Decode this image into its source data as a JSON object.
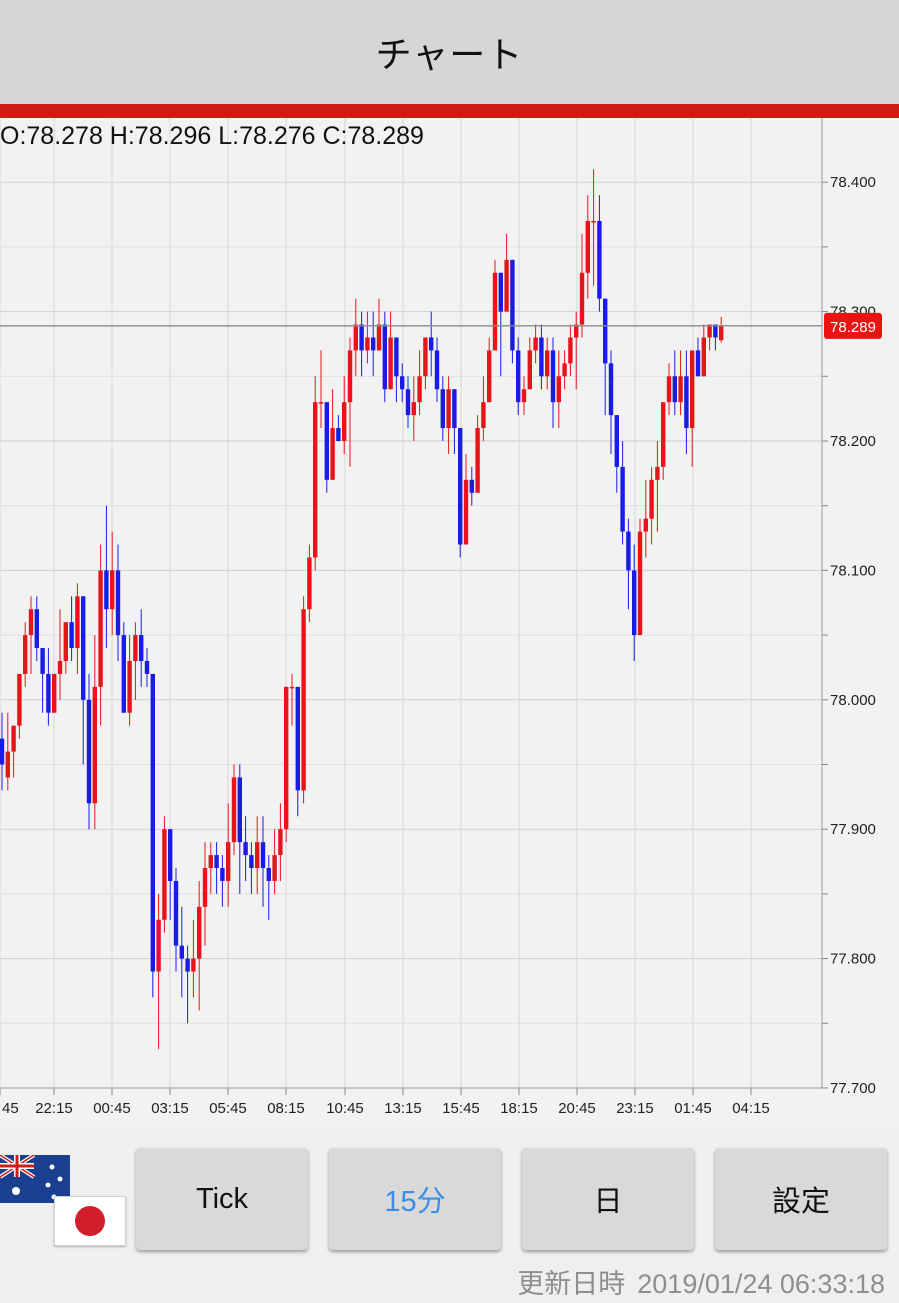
{
  "header": {
    "title": "チャート"
  },
  "ohlc": {
    "text": "O:78.278 H:78.296 L:78.276 C:78.289"
  },
  "chart_data": {
    "type": "candlestick",
    "ylim": [
      77.7,
      78.43
    ],
    "y_ticks": [
      77.7,
      77.8,
      77.9,
      78.0,
      78.1,
      78.2,
      78.3,
      78.4
    ],
    "y_tick_labels": [
      "77.700",
      "77.800",
      "77.900",
      "78.000",
      "78.100",
      "78.200",
      "78.300",
      "78.400"
    ],
    "x_tick_labels": [
      "45",
      "22:15",
      "00:45",
      "03:15",
      "05:45",
      "08:15",
      "10:45",
      "13:15",
      "15:45",
      "18:15",
      "20:45",
      "23:15",
      "01:45",
      "04:15"
    ],
    "current_price": 78.289,
    "current_price_label": "78.289",
    "grid": true,
    "up_color": "#e8141c",
    "down_color": "#1b1be6",
    "candles": [
      [
        77.97,
        77.95,
        77.99,
        77.93
      ],
      [
        77.94,
        77.96,
        77.99,
        77.93
      ],
      [
        77.96,
        77.98,
        77.98,
        77.94
      ],
      [
        77.98,
        78.02,
        78.02,
        77.97
      ],
      [
        78.02,
        78.05,
        78.06,
        78.01
      ],
      [
        78.05,
        78.07,
        78.08,
        78.02
      ],
      [
        78.07,
        78.04,
        78.08,
        78.03
      ],
      [
        78.04,
        78.02,
        78.03,
        77.99
      ],
      [
        78.02,
        77.99,
        78.04,
        77.98
      ],
      [
        77.99,
        78.02,
        78.02,
        77.99
      ],
      [
        78.02,
        78.03,
        78.07,
        78.0
      ],
      [
        78.03,
        78.06,
        78.06,
        78.02
      ],
      [
        78.06,
        78.04,
        78.08,
        78.03
      ],
      [
        78.04,
        78.08,
        78.09,
        78.02
      ],
      [
        78.08,
        78.0,
        78.08,
        77.95
      ],
      [
        78.0,
        77.92,
        78.02,
        77.9
      ],
      [
        77.92,
        78.01,
        78.05,
        77.9
      ],
      [
        78.01,
        78.1,
        78.12,
        77.98
      ],
      [
        78.1,
        78.07,
        78.15,
        78.04
      ],
      [
        78.07,
        78.1,
        78.13,
        78.05
      ],
      [
        78.1,
        78.05,
        78.12,
        78.03
      ],
      [
        78.05,
        77.99,
        78.06,
        77.99
      ],
      [
        77.99,
        78.03,
        78.05,
        77.98
      ],
      [
        78.03,
        78.05,
        78.06,
        78.0
      ],
      [
        78.05,
        78.03,
        78.07,
        78.01
      ],
      [
        78.03,
        78.02,
        78.04,
        78.01
      ],
      [
        78.02,
        77.79,
        78.02,
        77.77
      ],
      [
        77.79,
        77.83,
        77.85,
        77.73
      ],
      [
        77.83,
        77.9,
        77.91,
        77.82
      ],
      [
        77.9,
        77.86,
        77.9,
        77.83
      ],
      [
        77.86,
        77.81,
        77.87,
        77.79
      ],
      [
        77.81,
        77.8,
        77.84,
        77.77
      ],
      [
        77.8,
        77.79,
        77.81,
        77.75
      ],
      [
        77.79,
        77.8,
        77.83,
        77.77
      ],
      [
        77.8,
        77.84,
        77.86,
        77.76
      ],
      [
        77.84,
        77.87,
        77.89,
        77.81
      ],
      [
        77.87,
        77.88,
        77.89,
        77.85
      ],
      [
        77.88,
        77.87,
        77.89,
        77.85
      ],
      [
        77.87,
        77.86,
        77.88,
        77.84
      ],
      [
        77.86,
        77.89,
        77.92,
        77.84
      ],
      [
        77.89,
        77.94,
        77.95,
        77.88
      ],
      [
        77.94,
        77.89,
        77.95,
        77.85
      ],
      [
        77.89,
        77.88,
        77.91,
        77.86
      ],
      [
        77.88,
        77.87,
        77.89,
        77.85
      ],
      [
        77.87,
        77.89,
        77.91,
        77.85
      ],
      [
        77.89,
        77.87,
        77.91,
        77.84
      ],
      [
        77.87,
        77.86,
        77.88,
        77.83
      ],
      [
        77.86,
        77.88,
        77.9,
        77.85
      ],
      [
        77.88,
        77.9,
        77.92,
        77.86
      ],
      [
        77.9,
        78.01,
        78.01,
        77.89
      ],
      [
        78.01,
        78.01,
        78.02,
        77.98
      ],
      [
        78.01,
        77.93,
        78.01,
        77.91
      ],
      [
        77.93,
        78.07,
        78.08,
        77.92
      ],
      [
        78.07,
        78.11,
        78.12,
        78.06
      ],
      [
        78.11,
        78.23,
        78.25,
        78.1
      ],
      [
        78.23,
        78.23,
        78.27,
        78.21
      ],
      [
        78.23,
        78.17,
        78.23,
        78.16
      ],
      [
        78.17,
        78.21,
        78.24,
        78.18
      ],
      [
        78.21,
        78.2,
        78.22,
        78.2
      ],
      [
        78.2,
        78.23,
        78.25,
        78.19
      ],
      [
        78.23,
        78.27,
        78.28,
        78.18
      ],
      [
        78.27,
        78.29,
        78.31,
        78.25
      ],
      [
        78.29,
        78.27,
        78.3,
        78.25
      ],
      [
        78.27,
        78.28,
        78.3,
        78.26
      ],
      [
        78.28,
        78.27,
        78.3,
        78.25
      ],
      [
        78.27,
        78.29,
        78.31,
        78.27
      ],
      [
        78.29,
        78.24,
        78.3,
        78.23
      ],
      [
        78.24,
        78.28,
        78.3,
        78.24
      ],
      [
        78.28,
        78.25,
        78.28,
        78.23
      ],
      [
        78.25,
        78.24,
        78.26,
        78.23
      ],
      [
        78.24,
        78.22,
        78.25,
        78.21
      ],
      [
        78.22,
        78.23,
        78.25,
        78.2
      ],
      [
        78.23,
        78.25,
        78.27,
        78.22
      ],
      [
        78.25,
        78.28,
        78.28,
        78.24
      ],
      [
        78.28,
        78.27,
        78.3,
        78.25
      ],
      [
        78.27,
        78.24,
        78.28,
        78.23
      ],
      [
        78.24,
        78.21,
        78.25,
        78.2
      ],
      [
        78.21,
        78.24,
        78.25,
        78.19
      ],
      [
        78.24,
        78.21,
        78.24,
        78.19
      ],
      [
        78.21,
        78.12,
        78.21,
        78.11
      ],
      [
        78.12,
        78.17,
        78.19,
        78.12
      ],
      [
        78.17,
        78.16,
        78.18,
        78.15
      ],
      [
        78.16,
        78.21,
        78.22,
        78.16
      ],
      [
        78.21,
        78.23,
        78.25,
        78.2
      ],
      [
        78.23,
        78.27,
        78.28,
        78.23
      ],
      [
        78.27,
        78.33,
        78.34,
        78.27
      ],
      [
        78.33,
        78.3,
        78.33,
        78.25
      ],
      [
        78.3,
        78.34,
        78.36,
        78.3
      ],
      [
        78.34,
        78.27,
        78.34,
        78.26
      ],
      [
        78.27,
        78.23,
        78.28,
        78.22
      ],
      [
        78.23,
        78.24,
        78.25,
        78.22
      ],
      [
        78.24,
        78.27,
        78.28,
        78.24
      ],
      [
        78.27,
        78.28,
        78.29,
        78.26
      ],
      [
        78.28,
        78.25,
        78.29,
        78.24
      ],
      [
        78.25,
        78.27,
        78.28,
        78.24
      ],
      [
        78.27,
        78.23,
        78.28,
        78.21
      ],
      [
        78.23,
        78.25,
        78.27,
        78.21
      ],
      [
        78.25,
        78.26,
        78.27,
        78.24
      ],
      [
        78.26,
        78.28,
        78.29,
        78.25
      ],
      [
        78.28,
        78.29,
        78.3,
        78.24
      ],
      [
        78.29,
        78.33,
        78.36,
        78.28
      ],
      [
        78.33,
        78.37,
        78.39,
        78.31
      ],
      [
        78.37,
        78.37,
        78.41,
        78.32
      ],
      [
        78.37,
        78.31,
        78.39,
        78.3
      ],
      [
        78.31,
        78.26,
        78.31,
        78.22
      ],
      [
        78.26,
        78.22,
        78.27,
        78.19
      ],
      [
        78.22,
        78.18,
        78.22,
        78.16
      ],
      [
        78.18,
        78.13,
        78.2,
        78.12
      ],
      [
        78.13,
        78.1,
        78.14,
        78.07
      ],
      [
        78.1,
        78.05,
        78.12,
        78.03
      ],
      [
        78.05,
        78.13,
        78.14,
        78.05
      ],
      [
        78.13,
        78.14,
        78.17,
        78.11
      ],
      [
        78.14,
        78.17,
        78.18,
        78.12
      ],
      [
        78.17,
        78.18,
        78.2,
        78.13
      ],
      [
        78.18,
        78.23,
        78.23,
        78.17
      ],
      [
        78.23,
        78.25,
        78.26,
        78.22
      ],
      [
        78.25,
        78.23,
        78.27,
        78.22
      ],
      [
        78.23,
        78.25,
        78.27,
        78.22
      ],
      [
        78.25,
        78.21,
        78.27,
        78.19
      ],
      [
        78.21,
        78.27,
        78.27,
        78.18
      ],
      [
        78.27,
        78.25,
        78.28,
        78.25
      ],
      [
        78.25,
        78.28,
        78.29,
        78.25
      ],
      [
        78.28,
        78.29,
        78.29,
        78.27
      ],
      [
        78.29,
        78.28,
        78.29,
        78.27
      ],
      [
        78.278,
        78.289,
        78.296,
        78.276
      ]
    ]
  },
  "footer": {
    "buttons": [
      "Tick",
      "15分",
      "日",
      "設定"
    ],
    "active_button": "15分",
    "active_color": "#3b8ee8",
    "updated_label": "更新日時",
    "updated_time": "2019/01/24 06:33:18"
  }
}
